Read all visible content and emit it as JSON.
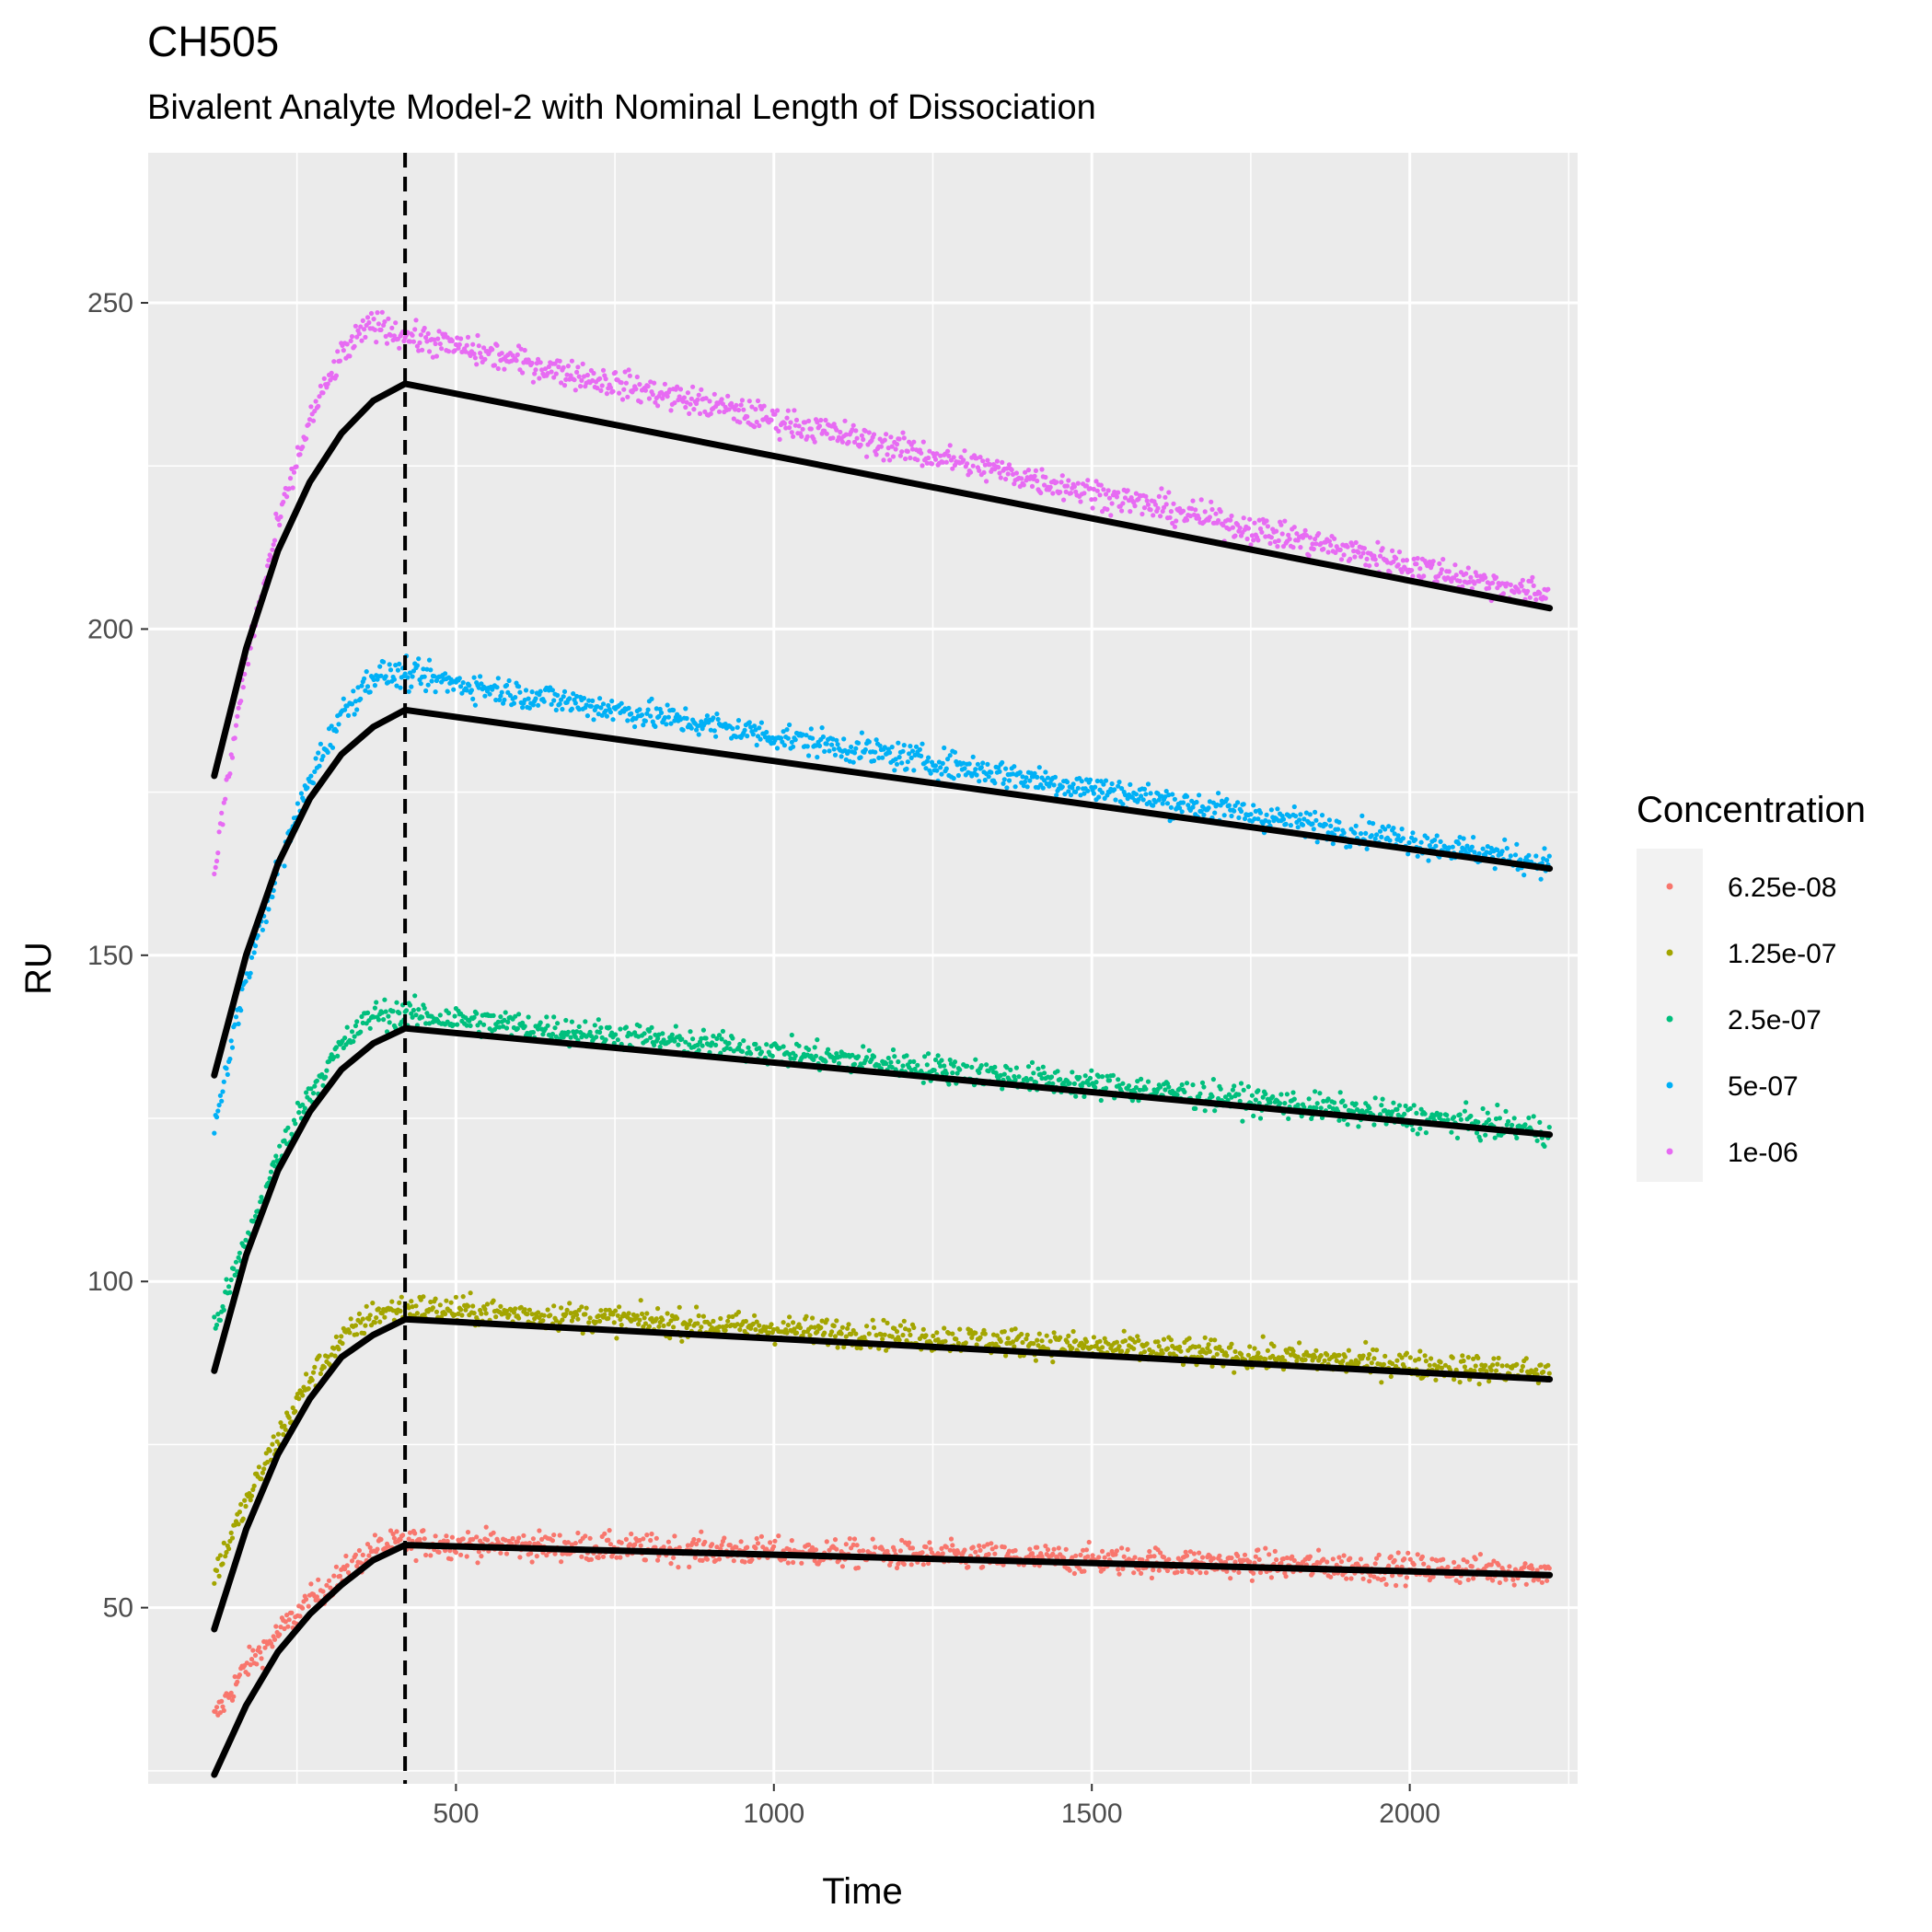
{
  "chart_data": {
    "type": "scatter",
    "title": "CH505",
    "subtitle": "Bivalent Analyte Model-2 with Nominal Length of Dissociation",
    "xlabel": "Time",
    "ylabel": "RU",
    "xlim": [
      16,
      2264
    ],
    "ylim": [
      23,
      273
    ],
    "x_ticks": [
      500,
      1000,
      1500,
      2000
    ],
    "y_ticks": [
      50,
      100,
      150,
      200,
      250
    ],
    "grid": true,
    "vline_x": 420,
    "legend": {
      "title": "Concentration",
      "position": "right"
    },
    "time_range": [
      120,
      2220
    ],
    "series": [
      {
        "name": "6.25e-08",
        "color": "#F8766D",
        "fit": {
          "x": [
            120,
            170,
            220,
            270,
            320,
            370,
            420,
            2220
          ],
          "y": [
            24.4,
            35.0,
            43.2,
            49.0,
            53.5,
            57.3,
            59.6,
            55.0
          ]
        },
        "data": {
          "x": [
            120,
            170,
            220,
            270,
            320,
            370,
            420,
            2220
          ],
          "y": [
            33.0,
            41.0,
            46.0,
            51.0,
            55.0,
            59.0,
            60.0,
            55.5
          ]
        }
      },
      {
        "name": "1.25e-07",
        "color": "#A3A500",
        "fit": {
          "x": [
            120,
            170,
            220,
            270,
            320,
            370,
            420,
            2220
          ],
          "y": [
            46.7,
            62.0,
            73.5,
            82.0,
            88.4,
            91.8,
            94.2,
            85.0
          ]
        },
        "data": {
          "x": [
            120,
            170,
            220,
            270,
            320,
            370,
            420,
            2220
          ],
          "y": [
            55.0,
            66.0,
            76.0,
            85.0,
            91.0,
            95.0,
            96.0,
            86.0
          ]
        }
      },
      {
        "name": "2.5e-07",
        "color": "#00BF7D",
        "fit": {
          "x": [
            120,
            170,
            220,
            270,
            320,
            370,
            420,
            2220
          ],
          "y": [
            86.3,
            104.0,
            117.0,
            126.0,
            132.5,
            136.5,
            138.8,
            122.5
          ]
        },
        "data": {
          "x": [
            120,
            170,
            220,
            270,
            320,
            370,
            420,
            2220
          ],
          "y": [
            93.0,
            106.0,
            119.0,
            129.0,
            136.0,
            141.0,
            141.0,
            123.0
          ]
        }
      },
      {
        "name": "5e-07",
        "color": "#00B0F6",
        "fit": {
          "x": [
            120,
            170,
            220,
            270,
            320,
            370,
            420,
            2220
          ],
          "y": [
            131.6,
            150.0,
            164.0,
            174.0,
            180.8,
            185.0,
            187.6,
            163.3
          ]
        },
        "data": {
          "x": [
            120,
            170,
            220,
            270,
            320,
            370,
            420,
            2220
          ],
          "y": [
            123.0,
            147.0,
            163.0,
            177.0,
            187.0,
            193.0,
            193.0,
            164.0
          ]
        }
      },
      {
        "name": "1e-06",
        "color": "#E76BF3",
        "fit": {
          "x": [
            120,
            170,
            220,
            270,
            320,
            370,
            420,
            2220
          ],
          "y": [
            177.5,
            197.0,
            212.0,
            222.5,
            230.0,
            235.0,
            237.6,
            203.2
          ]
        },
        "data": {
          "x": [
            120,
            170,
            220,
            270,
            320,
            370,
            420,
            2220
          ],
          "y": [
            163.0,
            195.0,
            216.0,
            232.0,
            242.0,
            247.0,
            245.0,
            205.0
          ]
        }
      }
    ]
  }
}
